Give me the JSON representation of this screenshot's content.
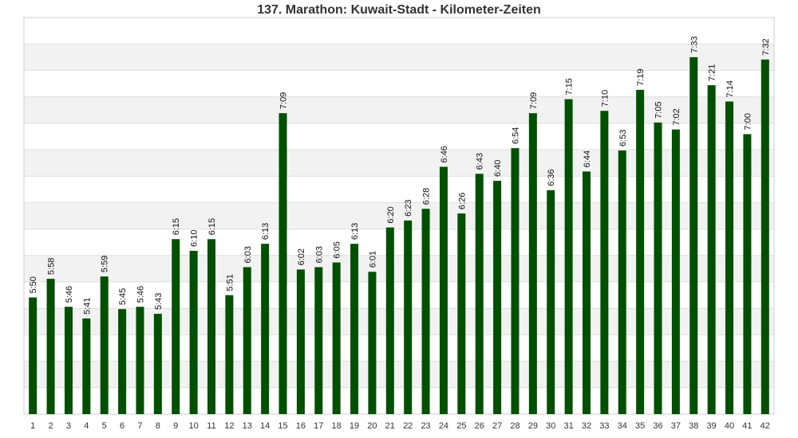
{
  "chart_data": {
    "type": "bar",
    "title": "137. Marathon: Kuwait-Stadt - Kilometer-Zeiten",
    "xlabel": "",
    "ylabel": "",
    "categories": [
      "1",
      "2",
      "3",
      "4",
      "5",
      "6",
      "7",
      "8",
      "9",
      "10",
      "11",
      "12",
      "13",
      "14",
      "15",
      "16",
      "17",
      "18",
      "19",
      "20",
      "21",
      "22",
      "23",
      "24",
      "25",
      "26",
      "27",
      "28",
      "29",
      "30",
      "31",
      "32",
      "33",
      "34",
      "35",
      "36",
      "37",
      "38",
      "39",
      "40",
      "41",
      "42"
    ],
    "series": [
      {
        "values_seconds": [
          350,
          358,
          346,
          341,
          359,
          345,
          346,
          343,
          375,
          370,
          375,
          351,
          363,
          373,
          429,
          362,
          363,
          365,
          373,
          361,
          380,
          383,
          388,
          406,
          386,
          403,
          400,
          414,
          429,
          396,
          435,
          404,
          430,
          413,
          439,
          425,
          422,
          453,
          441,
          434,
          420,
          452
        ],
        "labels": [
          "5:50",
          "5:58",
          "5:46",
          "5:41",
          "5:59",
          "5:45",
          "5:46",
          "5:43",
          "6:15",
          "6:10",
          "6:15",
          "5:51",
          "6:03",
          "6:13",
          "7:09",
          "6:02",
          "6:03",
          "6:05",
          "6:13",
          "6:01",
          "6:20",
          "6:23",
          "6:28",
          "6:46",
          "6:26",
          "6:43",
          "6:40",
          "6:54",
          "7:09",
          "6:36",
          "7:15",
          "6:44",
          "7:10",
          "6:53",
          "7:19",
          "7:05",
          "7:02",
          "7:33",
          "7:21",
          "7:14",
          "7:00",
          "7:32"
        ]
      }
    ],
    "ylim": [
      300,
      470
    ],
    "grid": true,
    "legend": "none",
    "colors": {
      "bar": "#005000",
      "band": "#f2f2f2",
      "gridline": "#dddddd",
      "border": "#cccccc"
    }
  }
}
